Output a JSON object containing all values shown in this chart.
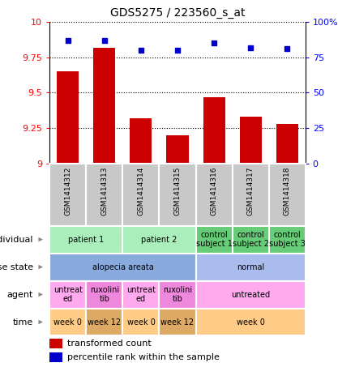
{
  "title": "GDS5275 / 223560_s_at",
  "samples": [
    "GSM1414312",
    "GSM1414313",
    "GSM1414314",
    "GSM1414315",
    "GSM1414316",
    "GSM1414317",
    "GSM1414318"
  ],
  "transformed_count": [
    9.65,
    9.82,
    9.32,
    9.2,
    9.47,
    9.33,
    9.28
  ],
  "percentile_rank": [
    87,
    87,
    80,
    80,
    85,
    82,
    81
  ],
  "ylim_left": [
    9.0,
    10.0
  ],
  "ylim_right": [
    0,
    100
  ],
  "yticks_left": [
    9.0,
    9.25,
    9.5,
    9.75,
    10.0
  ],
  "yticks_right": [
    0,
    25,
    50,
    75,
    100
  ],
  "bar_color": "#cc0000",
  "dot_color": "#0000cc",
  "bar_width": 0.6,
  "sample_box_color": "#c8c8c8",
  "annotation_rows": {
    "individual": {
      "label": "individual",
      "groups": [
        {
          "span": [
            0,
            1
          ],
          "text": "patient 1",
          "color": "#aaeebb"
        },
        {
          "span": [
            2,
            3
          ],
          "text": "patient 2",
          "color": "#aaeebb"
        },
        {
          "span": [
            4,
            4
          ],
          "text": "control\nsubject 1",
          "color": "#66cc77"
        },
        {
          "span": [
            5,
            5
          ],
          "text": "control\nsubject 2",
          "color": "#66cc77"
        },
        {
          "span": [
            6,
            6
          ],
          "text": "control\nsubject 3",
          "color": "#66cc77"
        }
      ]
    },
    "disease_state": {
      "label": "disease state",
      "groups": [
        {
          "span": [
            0,
            3
          ],
          "text": "alopecia areata",
          "color": "#88aadd"
        },
        {
          "span": [
            4,
            6
          ],
          "text": "normal",
          "color": "#aabbee"
        }
      ]
    },
    "agent": {
      "label": "agent",
      "groups": [
        {
          "span": [
            0,
            0
          ],
          "text": "untreat\ned",
          "color": "#ffaaee"
        },
        {
          "span": [
            1,
            1
          ],
          "text": "ruxolini\ntib",
          "color": "#ee88dd"
        },
        {
          "span": [
            2,
            2
          ],
          "text": "untreat\ned",
          "color": "#ffaaee"
        },
        {
          "span": [
            3,
            3
          ],
          "text": "ruxolini\ntib",
          "color": "#ee88dd"
        },
        {
          "span": [
            4,
            6
          ],
          "text": "untreated",
          "color": "#ffaaee"
        }
      ]
    },
    "time": {
      "label": "time",
      "groups": [
        {
          "span": [
            0,
            0
          ],
          "text": "week 0",
          "color": "#ffcc88"
        },
        {
          "span": [
            1,
            1
          ],
          "text": "week 12",
          "color": "#ddaa66"
        },
        {
          "span": [
            2,
            2
          ],
          "text": "week 0",
          "color": "#ffcc88"
        },
        {
          "span": [
            3,
            3
          ],
          "text": "week 12",
          "color": "#ddaa66"
        },
        {
          "span": [
            4,
            6
          ],
          "text": "week 0",
          "color": "#ffcc88"
        }
      ]
    }
  },
  "row_order": [
    "individual",
    "disease_state",
    "agent",
    "time"
  ],
  "row_labels": {
    "individual": "individual",
    "disease_state": "disease state",
    "agent": "agent",
    "time": "time"
  }
}
